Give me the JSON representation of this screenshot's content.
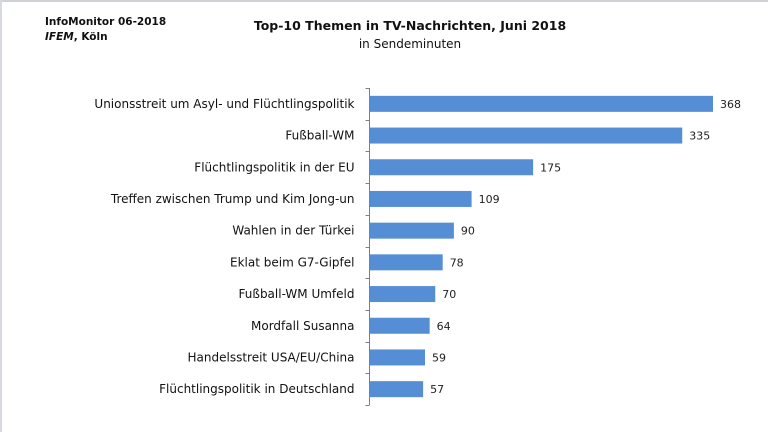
{
  "source": {
    "line1": "InfoMonitor  06-2018",
    "line2_italic": "IFEM",
    "line2_rest": ", Köln"
  },
  "chart_data": {
    "type": "bar",
    "orientation": "horizontal",
    "title": "Top-10 Themen in TV-Nachrichten, Juni 2018",
    "subtitle": "in Sendeminuten",
    "xlabel": "",
    "ylabel": "",
    "xlim": [
      0,
      368
    ],
    "grid": false,
    "bar_color": "#558ed5",
    "categories": [
      "Unionsstreit um Asyl- und Flüchtlingspolitik",
      "Fußball-WM",
      "Flüchtlingspolitik in der EU",
      "Treffen zwischen Trump und Kim Jong-un",
      "Wahlen in der Türkei",
      "Eklat beim G7-Gipfel",
      "Fußball-WM Umfeld",
      "Mordfall Susanna",
      "Handelsstreit USA/EU/China",
      "Flüchtlingspolitik in Deutschland"
    ],
    "values": [
      368,
      335,
      175,
      109,
      90,
      78,
      70,
      64,
      59,
      57
    ],
    "value_labels": [
      "368",
      "335",
      "175",
      "109",
      "90",
      "78",
      "70",
      "64",
      "59",
      "57"
    ]
  }
}
